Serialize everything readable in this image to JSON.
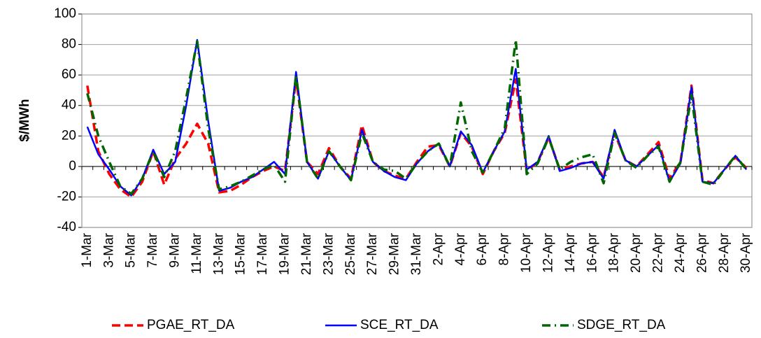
{
  "chart_data": {
    "type": "line",
    "y_label": "$/MWh",
    "categories": [
      "1-Mar",
      null,
      "3-Mar",
      null,
      "5-Mar",
      null,
      "7-Mar",
      null,
      "9-Mar",
      null,
      "11-Mar",
      null,
      "13-Mar",
      null,
      "15-Mar",
      null,
      "17-Mar",
      null,
      "19-Mar",
      null,
      "21-Mar",
      null,
      "23-Mar",
      null,
      "25-Mar",
      null,
      "27-Mar",
      null,
      "29-Mar",
      null,
      "31-Mar",
      null,
      "2-Apr",
      null,
      "4-Apr",
      null,
      "6-Apr",
      null,
      "8-Apr",
      null,
      "10-Apr",
      null,
      "12-Apr",
      null,
      "14-Apr",
      null,
      "16-Apr",
      null,
      "18-Apr",
      null,
      "20-Apr",
      null,
      "22-Apr",
      null,
      "24-Apr",
      null,
      "26-Apr",
      null,
      "28-Apr",
      null,
      "30-Apr"
    ],
    "series": [
      {
        "name": "PGAE_RT_DA",
        "color": "#ff0000",
        "style": "dashed",
        "values": [
          53,
          10,
          -5,
          -15,
          -20,
          -10,
          10,
          -12,
          5,
          15,
          28,
          15,
          -17,
          -16,
          -12,
          -7,
          -3,
          0,
          -3,
          58,
          3,
          -5,
          12,
          0,
          -8,
          27,
          3,
          -3,
          -6,
          -8,
          3,
          13,
          14,
          0,
          22,
          13,
          -5,
          10,
          22,
          57,
          -3,
          3,
          19,
          -2,
          0,
          2,
          3,
          -7,
          22,
          4,
          0,
          8,
          16,
          -8,
          3,
          53,
          -9,
          -11,
          -2,
          6,
          -1
        ]
      },
      {
        "name": "SCE_RT_DA",
        "color": "#0000ff",
        "style": "solid",
        "values": [
          26,
          8,
          -2,
          -13,
          -19,
          -8,
          11,
          -5,
          3,
          40,
          83,
          30,
          -16,
          -14,
          -10,
          -7,
          -2,
          3,
          -5,
          62,
          3,
          -8,
          10,
          0,
          -9,
          24,
          3,
          -3,
          -7,
          -9,
          2,
          10,
          15,
          0,
          23,
          14,
          -4,
          10,
          23,
          64,
          -2,
          3,
          20,
          -3,
          -1,
          2,
          3,
          -8,
          24,
          4,
          0,
          7,
          14,
          -10,
          2,
          52,
          -10,
          -11,
          -2,
          7,
          -2
        ]
      },
      {
        "name": "SDGE_RT_DA",
        "color": "#006600",
        "style": "dashdot",
        "values": [
          48,
          20,
          3,
          -13,
          -18,
          -8,
          10,
          -7,
          10,
          45,
          82,
          25,
          -15,
          -13,
          -10,
          -6,
          -2,
          1,
          -10,
          60,
          3,
          -8,
          10,
          0,
          -9,
          22,
          3,
          -2,
          -3,
          -8,
          2,
          10,
          15,
          0,
          42,
          10,
          -4,
          10,
          25,
          83,
          -5,
          2,
          19,
          -2,
          3,
          6,
          8,
          -11,
          22,
          4,
          -1,
          7,
          13,
          -10,
          3,
          47,
          -10,
          -12,
          -2,
          7,
          -2
        ]
      }
    ],
    "ylim": [
      -40,
      100
    ],
    "yticks": [
      -40,
      -20,
      0,
      20,
      40,
      60,
      80,
      100
    ],
    "grid": true,
    "legend": "bottom"
  }
}
